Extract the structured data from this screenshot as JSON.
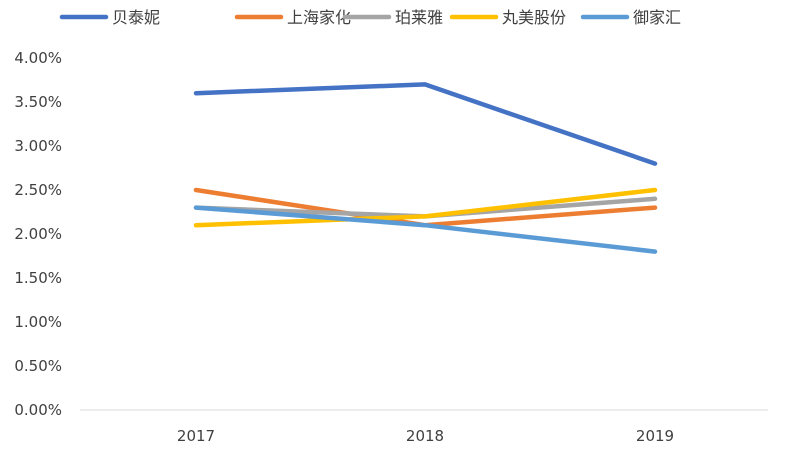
{
  "chart_data": {
    "type": "line",
    "title": "",
    "xlabel": "",
    "ylabel": "",
    "categories": [
      "2017",
      "2018",
      "2019"
    ],
    "y_ticks": [
      "0.00%",
      "0.50%",
      "1.00%",
      "1.50%",
      "2.00%",
      "2.50%",
      "3.00%",
      "3.50%",
      "4.00%"
    ],
    "ylim": [
      0,
      4
    ],
    "y_unit": "%",
    "grid": false,
    "legend_position": "top",
    "series": [
      {
        "name": "贝泰妮",
        "color": "#4472C4",
        "values": [
          3.6,
          3.7,
          2.8
        ]
      },
      {
        "name": "上海家化",
        "color": "#ED7D31",
        "values": [
          2.5,
          2.1,
          2.3
        ]
      },
      {
        "name": "珀莱雅",
        "color": "#A5A5A5",
        "values": [
          2.3,
          2.2,
          2.4
        ]
      },
      {
        "name": "丸美股份",
        "color": "#FFC000",
        "values": [
          2.1,
          2.2,
          2.5
        ]
      },
      {
        "name": "御家汇",
        "color": "#5B9BD5",
        "values": [
          2.3,
          2.1,
          1.8
        ]
      }
    ]
  }
}
